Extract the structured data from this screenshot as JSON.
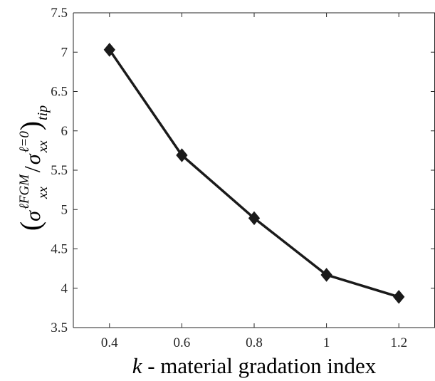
{
  "chart_data": {
    "type": "line",
    "title": "",
    "xlabel_var": "k",
    "xlabel_rest": " - material gradation index",
    "ylabel": {
      "paren_open": "(",
      "paren_close": ")",
      "sigma": "σ",
      "sub_xx": "xx",
      "sup_num": "ℓFGM",
      "slash": "/",
      "sup_den": "ℓ=0",
      "sub_tip": "tip"
    },
    "x": [
      0.4,
      0.6,
      0.8,
      1.0,
      1.2
    ],
    "xlim": [
      0.3,
      1.3
    ],
    "ylim": [
      3.5,
      7.5
    ],
    "xticks": [
      0.4,
      0.6,
      0.8,
      1.0,
      1.2
    ],
    "xtick_labels": [
      "0.4",
      "0.6",
      "0.8",
      "1",
      "1.2"
    ],
    "yticks": [
      3.5,
      4,
      4.5,
      5,
      5.5,
      6,
      6.5,
      7,
      7.5
    ],
    "ytick_labels": [
      "3.5",
      "4",
      "4.5",
      "5",
      "5.5",
      "6",
      "6.5",
      "7",
      "7.5"
    ],
    "grid": false,
    "series": [
      {
        "values": [
          7.03,
          5.69,
          4.89,
          4.17,
          3.89
        ],
        "color": "#1a1a1a",
        "marker": "diamond"
      }
    ]
  }
}
